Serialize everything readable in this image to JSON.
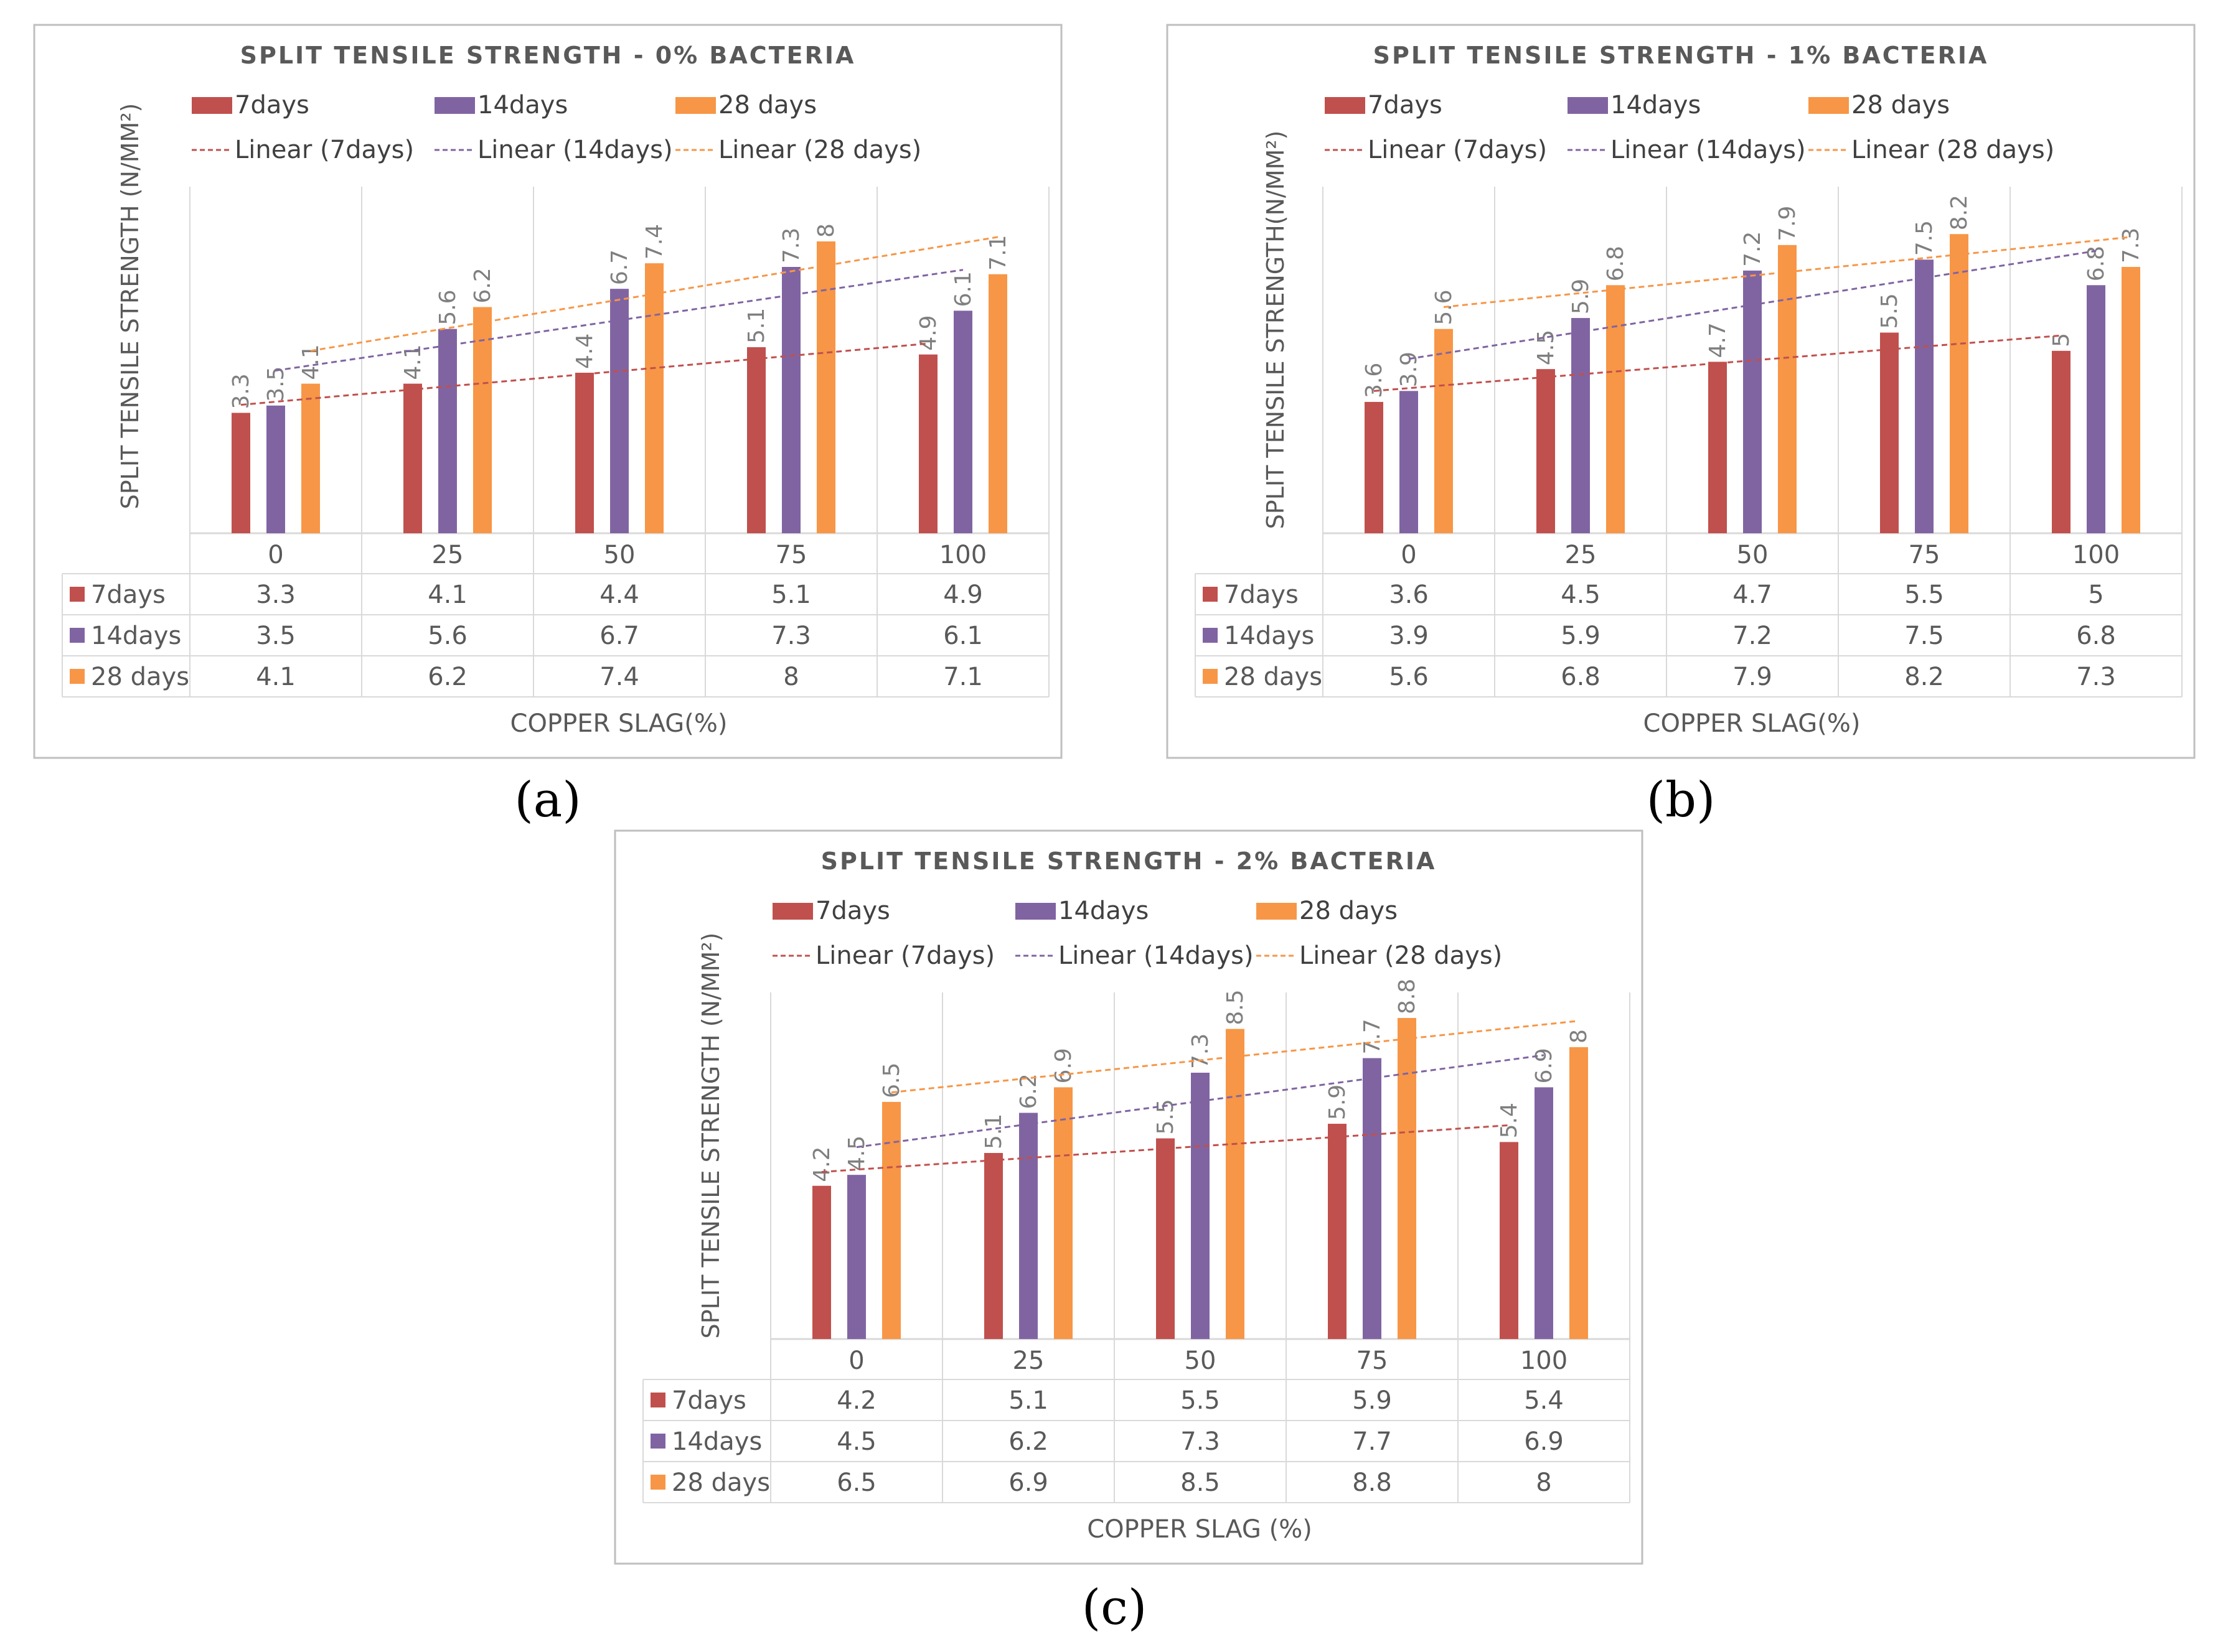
{
  "colors": {
    "d7": "#c0504d",
    "d14": "#8064a2",
    "d28": "#f79646",
    "grid": "#d9d9d9",
    "frame": "#bfbfbf"
  },
  "chart_data": [
    {
      "type": "bar",
      "panel": "(a)",
      "title": "SPLIT TENSILE STRENGTH - 0% BACTERIA",
      "ylabel": "SPLIT TENSILE STRENGTH  (N/MM²)",
      "xlabel": "COPPER SLAG(%)",
      "categories": [
        "0",
        "25",
        "50",
        "75",
        "100"
      ],
      "ylim": [
        0,
        9.5
      ],
      "series": [
        {
          "name": "7days",
          "color": "#c0504d",
          "values": [
            3.3,
            4.1,
            4.4,
            5.1,
            4.9
          ],
          "labels": [
            "3.3",
            "4.1",
            "4.4",
            "5.1",
            "4.9"
          ]
        },
        {
          "name": "14days",
          "color": "#8064a2",
          "values": [
            3.5,
            5.6,
            6.7,
            7.3,
            6.1
          ],
          "labels": [
            "3.5",
            "5.6",
            "6.7",
            "7.3",
            "6.1"
          ]
        },
        {
          "name": "28 days",
          "color": "#f79646",
          "values": [
            4.1,
            6.2,
            7.4,
            8,
            7.1
          ],
          "labels": [
            "4.1",
            "6.2",
            "7.4",
            "8",
            "7.1"
          ]
        }
      ],
      "trendlines": [
        "Linear (7days)",
        "Linear (14days)",
        "Linear (28 days)"
      ]
    },
    {
      "type": "bar",
      "panel": "(b)",
      "title": "SPLIT TENSILE STRENGTH - 1% BACTERIA",
      "ylabel": "SPLIT TENSILE STRENGTH(N/MM²)",
      "xlabel": "COPPER SLAG(%)",
      "categories": [
        "0",
        "25",
        "50",
        "75",
        "100"
      ],
      "ylim": [
        0,
        9.5
      ],
      "series": [
        {
          "name": "7days",
          "color": "#c0504d",
          "values": [
            3.6,
            4.5,
            4.7,
            5.5,
            5
          ],
          "labels": [
            "3.6",
            "4.5",
            "4.7",
            "5.5",
            "5"
          ]
        },
        {
          "name": "14days",
          "color": "#8064a2",
          "values": [
            3.9,
            5.9,
            7.2,
            7.5,
            6.8
          ],
          "labels": [
            "3.9",
            "5.9",
            "7.2",
            "7.5",
            "6.8"
          ]
        },
        {
          "name": "28 days",
          "color": "#f79646",
          "values": [
            5.6,
            6.8,
            7.9,
            8.2,
            7.3
          ],
          "labels": [
            "5.6",
            "6.8",
            "7.9",
            "8.2",
            "7.3"
          ]
        }
      ],
      "trendlines": [
        "Linear (7days)",
        "Linear (14days)",
        "Linear (28 days)"
      ]
    },
    {
      "type": "bar",
      "panel": "(c)",
      "title": "SPLIT TENSILE STRENGTH - 2% BACTERIA",
      "ylabel": "SPLIT TENSILE STRENGTH (N/MM²)",
      "xlabel": "COPPER SLAG (%)",
      "categories": [
        "0",
        "25",
        "50",
        "75",
        "100"
      ],
      "ylim": [
        0,
        9.5
      ],
      "series": [
        {
          "name": "7days",
          "color": "#c0504d",
          "values": [
            4.2,
            5.1,
            5.5,
            5.9,
            5.4
          ],
          "labels": [
            "4.2",
            "5.1",
            "5.5",
            "5.9",
            "5.4"
          ]
        },
        {
          "name": "14days",
          "color": "#8064a2",
          "values": [
            4.5,
            6.2,
            7.3,
            7.7,
            6.9
          ],
          "labels": [
            "4.5",
            "6.2",
            "7.3",
            "7.7",
            "6.9"
          ]
        },
        {
          "name": "28 days",
          "color": "#f79646",
          "values": [
            6.5,
            6.9,
            8.5,
            8.8,
            8
          ],
          "labels": [
            "6.5",
            "6.9",
            "8.5",
            "8.8",
            "8"
          ]
        }
      ],
      "trendlines": [
        "Linear (7days)",
        "Linear (14days)",
        "Linear (28 days)"
      ]
    }
  ]
}
